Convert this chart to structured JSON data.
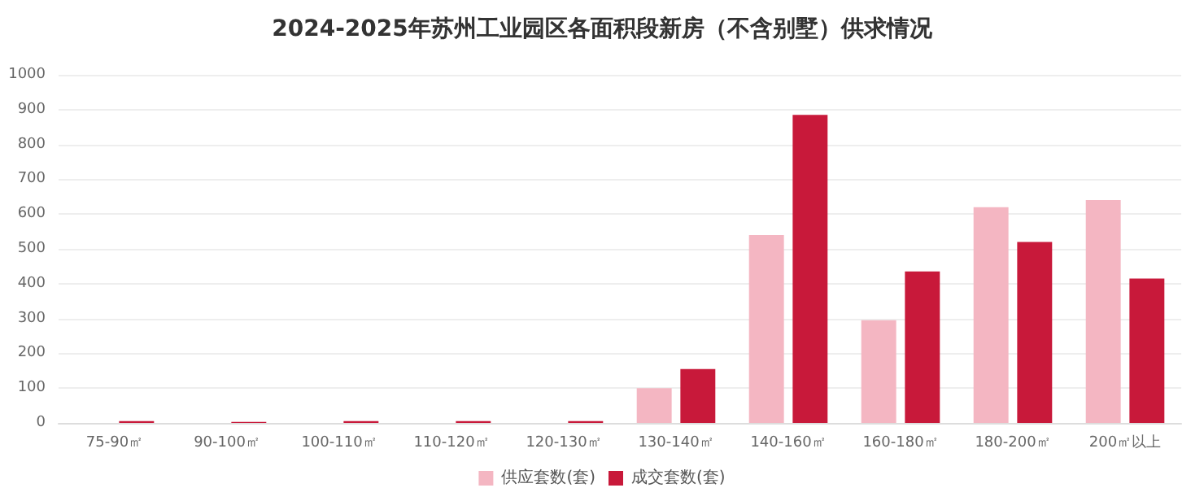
{
  "chart_data": {
    "type": "bar",
    "title": "2024-2025年苏州工业园区各面积段新房（不含别墅）供求情况",
    "categories": [
      "75-90㎡",
      "90-100㎡",
      "100-110㎡",
      "110-120㎡",
      "120-130㎡",
      "130-140㎡",
      "140-160㎡",
      "160-180㎡",
      "180-200㎡",
      "200㎡以上"
    ],
    "series": [
      {
        "name": "供应套数(套)",
        "color": "#f4b6c2",
        "values": [
          0,
          0,
          0,
          0,
          0,
          100,
          540,
          295,
          620,
          640
        ]
      },
      {
        "name": "成交套数(套)",
        "color": "#c8193a",
        "values": [
          5,
          3,
          5,
          5,
          5,
          155,
          885,
          435,
          520,
          415
        ]
      }
    ],
    "ylim": [
      0,
      1000
    ],
    "yticks": [
      0,
      100,
      200,
      300,
      400,
      500,
      600,
      700,
      800,
      900,
      1000
    ],
    "grid": "y",
    "legend": "bottom"
  }
}
